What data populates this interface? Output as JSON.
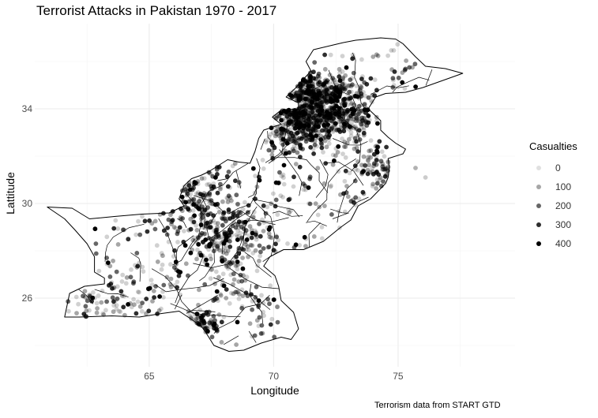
{
  "title": "Terrorist Attacks in Pakistan 1970 - 2017",
  "caption": "Terrorism data from START GTD",
  "legend": {
    "title": "Casualties",
    "items": [
      {
        "label": "0",
        "alpha": 0.12
      },
      {
        "label": "100",
        "alpha": 0.35
      },
      {
        "label": "200",
        "alpha": 0.6
      },
      {
        "label": "300",
        "alpha": 0.82
      },
      {
        "label": "400",
        "alpha": 1.0
      }
    ]
  },
  "chart_data": {
    "type": "scatter",
    "title": "Terrorist Attacks in Pakistan 1970 - 2017",
    "xlabel": "Longitude",
    "ylabel": "Lattitude",
    "x_ticks": [
      "65",
      "70",
      "75"
    ],
    "y_ticks": [
      "26",
      "30",
      "34"
    ],
    "xlim": [
      60.4,
      79.7
    ],
    "ylim": [
      23.1,
      37.6
    ],
    "grid": true,
    "legend_position": "right",
    "point_color": "#000000",
    "outline": [
      [
        61.6,
        25.2
      ],
      [
        62.2,
        25.2
      ],
      [
        63.5,
        25.25
      ],
      [
        64.6,
        25.2
      ],
      [
        65.5,
        25.35
      ],
      [
        66.2,
        25.45
      ],
      [
        66.7,
        25.1
      ],
      [
        67.1,
        24.8
      ],
      [
        67.3,
        24.5
      ],
      [
        67.6,
        24.0
      ],
      [
        68.2,
        23.75
      ],
      [
        68.8,
        23.8
      ],
      [
        69.5,
        24.1
      ],
      [
        70.3,
        24.35
      ],
      [
        70.7,
        24.25
      ],
      [
        71.0,
        24.7
      ],
      [
        70.8,
        25.4
      ],
      [
        70.3,
        25.9
      ],
      [
        70.2,
        26.5
      ],
      [
        70.05,
        26.95
      ],
      [
        69.6,
        27.35
      ],
      [
        69.85,
        27.75
      ],
      [
        70.4,
        28.05
      ],
      [
        71.2,
        28.05
      ],
      [
        72.0,
        28.4
      ],
      [
        72.7,
        29.0
      ],
      [
        73.1,
        29.3
      ],
      [
        73.4,
        29.9
      ],
      [
        73.9,
        30.2
      ],
      [
        74.5,
        30.85
      ],
      [
        74.6,
        31.1
      ],
      [
        74.65,
        31.5
      ],
      [
        74.6,
        31.9
      ],
      [
        75.2,
        32.1
      ],
      [
        75.3,
        32.3
      ],
      [
        74.9,
        32.55
      ],
      [
        74.6,
        32.8
      ],
      [
        74.3,
        33.1
      ],
      [
        74.3,
        33.5
      ],
      [
        73.8,
        34.0
      ],
      [
        74.1,
        34.5
      ],
      [
        74.5,
        34.65
      ],
      [
        75.3,
        34.7
      ],
      [
        76.0,
        34.9
      ],
      [
        76.8,
        35.2
      ],
      [
        77.6,
        35.5
      ],
      [
        76.9,
        35.7
      ],
      [
        76.1,
        35.8
      ],
      [
        75.7,
        36.2
      ],
      [
        75.2,
        36.75
      ],
      [
        74.9,
        36.95
      ],
      [
        74.3,
        37.0
      ],
      [
        73.3,
        36.9
      ],
      [
        72.8,
        36.8
      ],
      [
        71.6,
        36.5
      ],
      [
        71.3,
        36.0
      ],
      [
        71.5,
        35.6
      ],
      [
        71.15,
        35.2
      ],
      [
        70.9,
        34.9
      ],
      [
        70.5,
        34.5
      ],
      [
        71.0,
        34.25
      ],
      [
        71.0,
        34.0
      ],
      [
        70.3,
        33.95
      ],
      [
        69.95,
        33.65
      ],
      [
        70.3,
        33.35
      ],
      [
        69.6,
        33.1
      ],
      [
        69.4,
        32.75
      ],
      [
        69.25,
        32.2
      ],
      [
        69.05,
        31.7
      ],
      [
        68.6,
        31.75
      ],
      [
        68.15,
        31.85
      ],
      [
        67.7,
        31.55
      ],
      [
        67.4,
        31.35
      ],
      [
        67.1,
        31.2
      ],
      [
        66.7,
        31.05
      ],
      [
        66.4,
        30.75
      ],
      [
        66.2,
        30.2
      ],
      [
        66.4,
        29.9
      ],
      [
        65.8,
        29.6
      ],
      [
        64.7,
        29.55
      ],
      [
        63.6,
        29.45
      ],
      [
        62.6,
        29.35
      ],
      [
        61.9,
        29.8
      ],
      [
        60.9,
        29.85
      ],
      [
        61.6,
        29.35
      ],
      [
        62.0,
        28.9
      ],
      [
        62.5,
        28.3
      ],
      [
        62.8,
        27.75
      ],
      [
        62.8,
        27.1
      ],
      [
        63.2,
        26.85
      ],
      [
        63.2,
        26.6
      ],
      [
        62.4,
        26.5
      ],
      [
        61.8,
        26.2
      ],
      [
        61.6,
        25.2
      ]
    ]
  }
}
